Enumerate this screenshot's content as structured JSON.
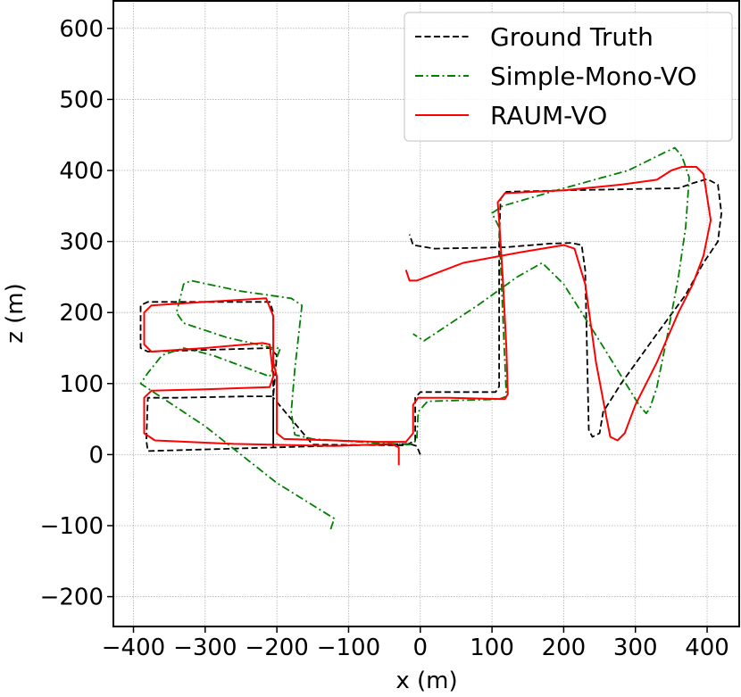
{
  "chart_data": {
    "type": "line",
    "title": "",
    "xlabel": "x (m)",
    "ylabel": "z (m)",
    "xlim": [
      -428,
      446
    ],
    "ylim": [
      -242,
      640
    ],
    "xticks": [
      -400,
      -300,
      -200,
      -100,
      0,
      100,
      200,
      300,
      400
    ],
    "yticks": [
      -200,
      -100,
      0,
      100,
      200,
      300,
      400,
      500,
      600
    ],
    "xtick_labels": [
      "−400",
      "−300",
      "−200",
      "−100",
      "0",
      "100",
      "200",
      "300",
      "400"
    ],
    "ytick_labels": [
      "−200",
      "−100",
      "0",
      "100",
      "200",
      "300",
      "400",
      "500",
      "600"
    ],
    "grid": true,
    "legend_position": "top-right",
    "series": [
      {
        "name": "Ground Truth",
        "color": "#000000",
        "style": "dashed",
        "points": [
          [
            0,
            0
          ],
          [
            -5,
            12
          ],
          [
            -15,
            15
          ],
          [
            -100,
            13
          ],
          [
            -205,
            10
          ],
          [
            -380,
            5
          ],
          [
            -382,
            20
          ],
          [
            -380,
            80
          ],
          [
            -340,
            80
          ],
          [
            -240,
            82
          ],
          [
            -205,
            82
          ],
          [
            -200,
            140
          ],
          [
            -210,
            150
          ],
          [
            -380,
            145
          ],
          [
            -390,
            150
          ],
          [
            -390,
            210
          ],
          [
            -380,
            215
          ],
          [
            -210,
            215
          ],
          [
            -205,
            200
          ],
          [
            -205,
            10
          ],
          [
            -205,
            80
          ],
          [
            -150,
            14
          ],
          [
            -20,
            13
          ],
          [
            -7,
            20
          ],
          [
            -7,
            80
          ],
          [
            0,
            88
          ],
          [
            105,
            88
          ],
          [
            110,
            96
          ],
          [
            110,
            300
          ],
          [
            112,
            360
          ],
          [
            120,
            370
          ],
          [
            200,
            372
          ],
          [
            360,
            375
          ],
          [
            380,
            382
          ],
          [
            400,
            388
          ],
          [
            415,
            380
          ],
          [
            420,
            340
          ],
          [
            415,
            300
          ],
          [
            395,
            270
          ],
          [
            370,
            225
          ],
          [
            330,
            170
          ],
          [
            280,
            100
          ],
          [
            255,
            60
          ],
          [
            250,
            30
          ],
          [
            240,
            25
          ],
          [
            235,
            35
          ],
          [
            230,
            260
          ],
          [
            225,
            295
          ],
          [
            210,
            298
          ],
          [
            180,
            297
          ],
          [
            120,
            292
          ],
          [
            20,
            290
          ],
          [
            -10,
            295
          ],
          [
            -15,
            310
          ]
        ]
      },
      {
        "name": "Simple-Mono-VO",
        "color": "#008000",
        "style": "dashdot",
        "points": [
          [
            -125,
            -105
          ],
          [
            -120,
            -90
          ],
          [
            -200,
            -40
          ],
          [
            -300,
            40
          ],
          [
            -390,
            100
          ],
          [
            -380,
            115
          ],
          [
            -360,
            140
          ],
          [
            -330,
            150
          ],
          [
            -290,
            140
          ],
          [
            -210,
            110
          ],
          [
            -195,
            150
          ],
          [
            -205,
            150
          ],
          [
            -270,
            165
          ],
          [
            -330,
            185
          ],
          [
            -340,
            200
          ],
          [
            -330,
            240
          ],
          [
            -320,
            245
          ],
          [
            -250,
            230
          ],
          [
            -180,
            220
          ],
          [
            -165,
            210
          ],
          [
            -175,
            120
          ],
          [
            -180,
            60
          ],
          [
            -175,
            28
          ],
          [
            -150,
            22
          ],
          [
            -70,
            17
          ],
          [
            -15,
            14
          ],
          [
            -5,
            20
          ],
          [
            -3,
            60
          ],
          [
            10,
            75
          ],
          [
            110,
            78
          ],
          [
            120,
            82
          ],
          [
            115,
            200
          ],
          [
            110,
            320
          ],
          [
            100,
            340
          ],
          [
            115,
            350
          ],
          [
            200,
            375
          ],
          [
            290,
            400
          ],
          [
            340,
            425
          ],
          [
            355,
            432
          ],
          [
            365,
            420
          ],
          [
            375,
            390
          ],
          [
            370,
            320
          ],
          [
            360,
            250
          ],
          [
            345,
            170
          ],
          [
            330,
            95
          ],
          [
            320,
            65
          ],
          [
            315,
            58
          ],
          [
            305,
            70
          ],
          [
            250,
            160
          ],
          [
            200,
            240
          ],
          [
            170,
            270
          ],
          [
            135,
            250
          ],
          [
            80,
            210
          ],
          [
            20,
            170
          ],
          [
            5,
            160
          ],
          [
            -10,
            170
          ]
        ]
      },
      {
        "name": "RAUM-VO",
        "color": "#ff0000",
        "style": "solid",
        "points": [
          [
            -30,
            -15
          ],
          [
            -30,
            10
          ],
          [
            -40,
            15
          ],
          [
            -120,
            12
          ],
          [
            -260,
            15
          ],
          [
            -370,
            20
          ],
          [
            -385,
            30
          ],
          [
            -385,
            80
          ],
          [
            -375,
            90
          ],
          [
            -300,
            92
          ],
          [
            -210,
            95
          ],
          [
            -205,
            110
          ],
          [
            -210,
            155
          ],
          [
            -220,
            157
          ],
          [
            -300,
            150
          ],
          [
            -375,
            145
          ],
          [
            -385,
            155
          ],
          [
            -385,
            200
          ],
          [
            -375,
            210
          ],
          [
            -300,
            215
          ],
          [
            -215,
            220
          ],
          [
            -205,
            195
          ],
          [
            -205,
            130
          ],
          [
            -200,
            110
          ],
          [
            -200,
            30
          ],
          [
            -190,
            22
          ],
          [
            -120,
            20
          ],
          [
            -60,
            18
          ],
          [
            -20,
            18
          ],
          [
            -10,
            30
          ],
          [
            -10,
            70
          ],
          [
            -3,
            80
          ],
          [
            40,
            80
          ],
          [
            118,
            78
          ],
          [
            122,
            85
          ],
          [
            120,
            150
          ],
          [
            115,
            250
          ],
          [
            110,
            330
          ],
          [
            108,
            355
          ],
          [
            118,
            368
          ],
          [
            200,
            372
          ],
          [
            280,
            380
          ],
          [
            330,
            387
          ],
          [
            350,
            400
          ],
          [
            365,
            405
          ],
          [
            385,
            405
          ],
          [
            395,
            395
          ],
          [
            405,
            330
          ],
          [
            395,
            280
          ],
          [
            380,
            240
          ],
          [
            360,
            200
          ],
          [
            330,
            130
          ],
          [
            300,
            70
          ],
          [
            285,
            30
          ],
          [
            275,
            20
          ],
          [
            265,
            25
          ],
          [
            260,
            50
          ],
          [
            245,
            130
          ],
          [
            230,
            240
          ],
          [
            215,
            290
          ],
          [
            200,
            295
          ],
          [
            140,
            285
          ],
          [
            60,
            270
          ],
          [
            -5,
            245
          ],
          [
            -15,
            245
          ],
          [
            -20,
            260
          ]
        ]
      }
    ]
  }
}
